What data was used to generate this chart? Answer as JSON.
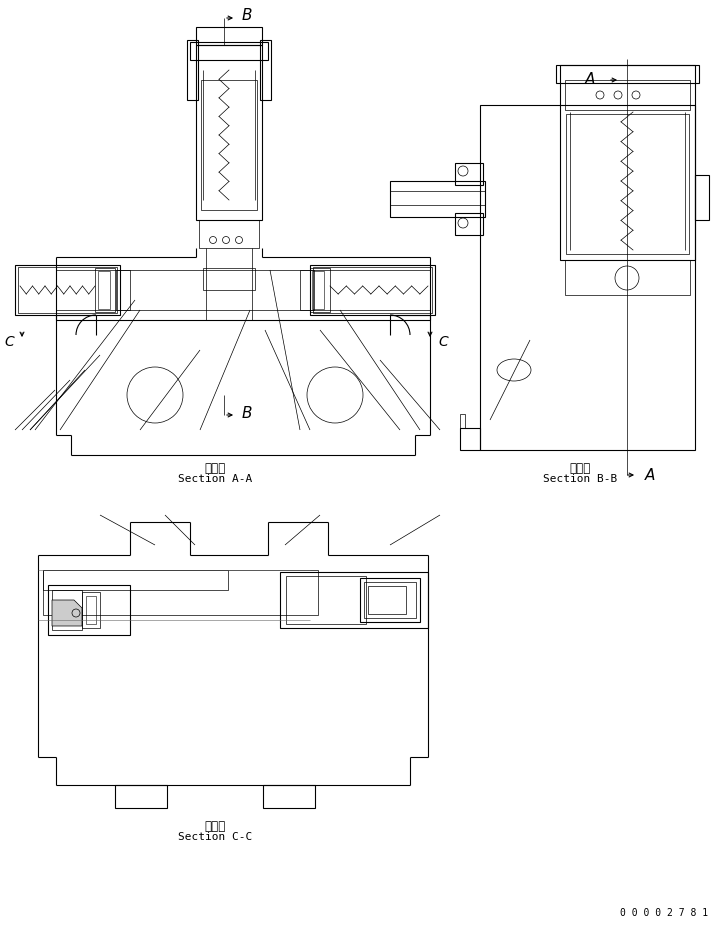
{
  "bg_color": "#ffffff",
  "line_color": "#000000",
  "section_aa_label_jp": "断　面",
  "section_aa_label_en": "Section A-A",
  "section_bb_label_jp": "断　面",
  "section_bb_label_en": "Section B-B",
  "section_cc_label_jp": "断　面",
  "section_cc_label_en": "Section C-C",
  "part_number": "0 0 0 0 2 7 8 1"
}
